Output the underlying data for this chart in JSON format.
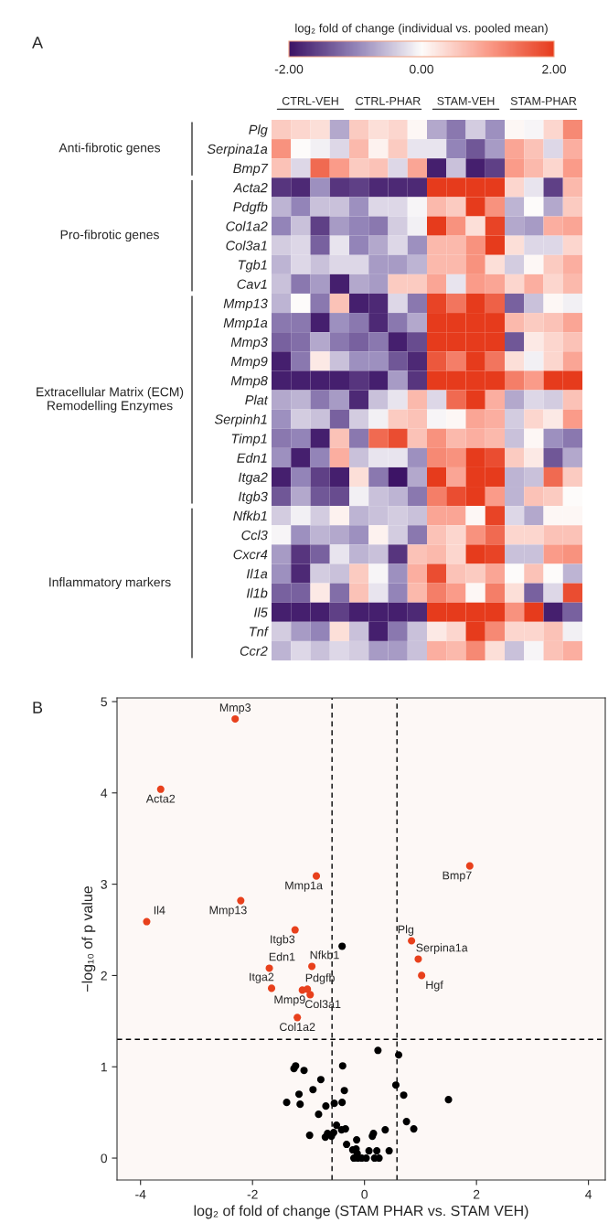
{
  "chart_data": [
    {
      "type": "heatmap",
      "clabel": "log₂ fold of change (individual vs. pooled mean)",
      "clim": [
        -2,
        2
      ],
      "cticks": [
        {
          "value": -2,
          "label": "-2.00"
        },
        {
          "value": 0,
          "label": "0.00"
        },
        {
          "value": 2,
          "label": "2.00"
        }
      ],
      "annotations": [
        "A",
        "CTRL-VEH",
        "CTRL-PHAR",
        "STAM-VEH",
        "STAM-PHAR",
        "Anti-fibrotic genes",
        "Pro-fibrotic genes",
        "Extracellular Matrix (ECM)\nRemodelling Enzymes",
        "Inflammatory markers"
      ],
      "categories": [
        null,
        null,
        null,
        null,
        null,
        null,
        null,
        null,
        null,
        null,
        null,
        null,
        null,
        null,
        null,
        null
      ],
      "y_categories": [
        "Plg",
        "Serpina1a",
        "Bmp7",
        "Acta2",
        "Pdgfb",
        "Col1a2",
        "Col3a1",
        "Tgb1",
        "Cav1",
        "Mmp13",
        "Mmp1a",
        "Mmp3",
        "Mmp9",
        "Mmp8",
        "Plat",
        "Serpinh1",
        "Timp1",
        "Edn1",
        "Itga2",
        "Itgb3",
        "Nfkb1",
        "Ccl3",
        "Cxcr4",
        "Il1a",
        "Il1b",
        "Il5",
        "Tnf",
        "Ccr2"
      ],
      "cells": [
        [
          0.5,
          0.4,
          0.3,
          -0.7,
          0.5,
          0.3,
          0.4,
          0.05,
          -0.7,
          -1.1,
          -0.4,
          -0.9,
          0.05,
          -0.05,
          0.4,
          1.2
        ],
        [
          1.1,
          0,
          -0.1,
          -0.3,
          0.7,
          0.1,
          0.5,
          -0.2,
          -0.2,
          -1.0,
          -1.4,
          -0.8,
          0.9,
          0.6,
          -0.3,
          0.8
        ],
        [
          0.6,
          -0.3,
          1.5,
          1.0,
          0.5,
          0.6,
          -0.3,
          0.9,
          -1.9,
          -0.5,
          -1.9,
          -1.6,
          1.0,
          0.7,
          0.4,
          1.0
        ],
        [
          -1.7,
          -1.8,
          -0.9,
          -1.7,
          -1.6,
          -1.8,
          -1.8,
          -1.8,
          2,
          2,
          2,
          2,
          0.4,
          -0.2,
          -1.6,
          0.7
        ],
        [
          -0.6,
          -1.0,
          -0.5,
          -0.5,
          -0.9,
          -0.3,
          -0.3,
          -0.05,
          0.7,
          0.5,
          2,
          1.1,
          -0.6,
          0,
          -0.7,
          0.5
        ],
        [
          -1.0,
          -0.5,
          -1.6,
          -0.8,
          -1.0,
          -1.1,
          -0.4,
          -0.1,
          2,
          1.1,
          0.3,
          1.9,
          -0.7,
          -0.8,
          0.8,
          0.9
        ],
        [
          -0.4,
          -0.3,
          -1.3,
          -0.2,
          -1.0,
          -0.7,
          -0.3,
          -0.9,
          0.7,
          0.7,
          1.1,
          2,
          0.3,
          -0.3,
          -0.3,
          0.4
        ],
        [
          -0.6,
          -0.3,
          -0.5,
          -0.3,
          -0.3,
          -0.8,
          -0.8,
          -0.6,
          0.7,
          0.7,
          1.1,
          0.3,
          -0.4,
          0.05,
          0.5,
          0.8
        ],
        [
          -0.5,
          -1.1,
          -0.8,
          -1.9,
          -0.7,
          -0.8,
          0.5,
          0.5,
          0.9,
          -0.2,
          1.0,
          0.9,
          0.4,
          0.8,
          0.4,
          0.7
        ],
        [
          -0.6,
          0,
          -1.1,
          0.6,
          -1.9,
          -1.8,
          -0.3,
          -1.1,
          1.9,
          1.4,
          2,
          1.6,
          -1.3,
          -0.5,
          0.05,
          -0.1
        ],
        [
          -1.1,
          -1.1,
          -1.9,
          -0.9,
          -1.1,
          -1.8,
          -1.1,
          -0.7,
          2,
          2,
          2,
          2,
          0.7,
          0.5,
          0.6,
          0.9
        ],
        [
          -1.3,
          -1.2,
          -0.7,
          -1.1,
          -1.3,
          -1.1,
          -1.9,
          -1.5,
          2,
          2,
          2,
          2,
          -1.4,
          0.2,
          0.4,
          0.6
        ],
        [
          -1.9,
          -1.1,
          0.2,
          -0.5,
          -0.9,
          -0.9,
          -1.4,
          -1.8,
          1.7,
          1.3,
          2,
          1.4,
          0.3,
          -0.1,
          0.4,
          0.9
        ],
        [
          -1.9,
          -1.9,
          -1.9,
          -1.9,
          -1.7,
          -1.9,
          -0.8,
          -1.7,
          2,
          2,
          2,
          2,
          1.3,
          1.0,
          2,
          2
        ],
        [
          -0.7,
          -0.6,
          -1.1,
          -0.8,
          -1.8,
          -0.5,
          -0.2,
          0.7,
          -0.3,
          1.5,
          2,
          0.8,
          -0.7,
          -0.3,
          -0.4,
          0.6
        ],
        [
          -0.9,
          -0.4,
          -0.5,
          -1.3,
          -0.4,
          -0.1,
          0.5,
          0.6,
          -0.05,
          0.05,
          0.9,
          0.8,
          -0.4,
          0.4,
          0.2,
          1.0
        ],
        [
          -1.1,
          -1.0,
          -1.9,
          0.6,
          -1.1,
          1.5,
          1.8,
          0.6,
          1.1,
          0.7,
          0.8,
          0.7,
          -0.5,
          0.05,
          -0.9,
          -1.1
        ],
        [
          -0.9,
          -1.9,
          -1.0,
          0.8,
          -0.5,
          -0.2,
          -0.2,
          -0.9,
          1.2,
          1.1,
          2,
          1.8,
          0.5,
          0.2,
          -1.4,
          -0.7
        ],
        [
          -1.9,
          -1.0,
          -1.6,
          -1.9,
          0.3,
          -1.1,
          -2,
          -0.7,
          2,
          0.9,
          2,
          2,
          -0.6,
          -0.5,
          1.5,
          0.5
        ],
        [
          -1.4,
          -0.7,
          -1.4,
          -1.5,
          -0.1,
          -0.5,
          -0.6,
          -1.1,
          1.3,
          1.8,
          2,
          1.0,
          -0.6,
          0.6,
          0.5,
          0
        ],
        [
          -0.4,
          -0.1,
          -0.4,
          0.1,
          -0.6,
          -0.5,
          -0.4,
          -0.5,
          0.9,
          0.9,
          0.05,
          1.9,
          -0.3,
          -0.7,
          0.05,
          0.05
        ],
        [
          -0.05,
          -0.9,
          -0.6,
          -0.7,
          -0.9,
          0.1,
          -0.4,
          -1.1,
          0.6,
          0.4,
          1.1,
          1.5,
          0.4,
          0.4,
          0.6,
          0.6
        ],
        [
          -0.8,
          -1.7,
          -1.3,
          -0.2,
          -0.6,
          -0.5,
          -1.7,
          0.6,
          0.7,
          0.4,
          2,
          1.9,
          -0.5,
          -0.5,
          1.0,
          1.1
        ],
        [
          -0.9,
          -1.8,
          -0.4,
          -0.5,
          0.5,
          -0.05,
          -0.9,
          0.8,
          1.8,
          0.6,
          0.5,
          0.9,
          0,
          0.6,
          0,
          -0.6
        ],
        [
          -1.3,
          -1.3,
          0.2,
          -1.2,
          0.6,
          -0.2,
          -1.0,
          0.7,
          1.3,
          1.0,
          0.05,
          1.3,
          0.3,
          -1.3,
          -0.3,
          1.8
        ],
        [
          -1.9,
          -1.9,
          -1.9,
          -1.6,
          -1.9,
          -1.9,
          -1.9,
          -1.8,
          2,
          2,
          2,
          2,
          1.1,
          2,
          -1.9,
          -1.3
        ],
        [
          -0.4,
          -0.8,
          -1.0,
          0.3,
          -0.5,
          -1.9,
          -1.1,
          -0.5,
          0.2,
          0.4,
          2,
          1.2,
          0.4,
          0.4,
          0.6,
          -0.1
        ],
        [
          -0.6,
          -0.3,
          -0.5,
          -0.3,
          -0.4,
          -0.8,
          -0.8,
          -0.5,
          0.8,
          0.7,
          1.2,
          0.3,
          -0.5,
          -0.05,
          0.6,
          0.8
        ]
      ]
    },
    {
      "type": "scatter",
      "xlabel": "log₂ of fold of change (STAM PHAR vs. STAM VEH)",
      "ylabel": "−log₁₀ of p value",
      "annotations": [
        "B"
      ],
      "marker": "circle",
      "xlim": [
        -4.42,
        4.3
      ],
      "xticks": [
        -4,
        -2,
        0,
        2,
        4
      ],
      "ylim": [
        -0.24,
        5.04
      ],
      "yticks": [
        0,
        1,
        2,
        3,
        4,
        5
      ],
      "ref_lines": [
        {
          "axis": "x",
          "value": -0.58,
          "color": "#000000",
          "line_style": "dashed"
        },
        {
          "axis": "x",
          "value": 0.58,
          "color": "#000000",
          "line_style": "dashed"
        },
        {
          "axis": "y",
          "value": 1.3,
          "color": "#000000",
          "line_style": "dashed"
        }
      ],
      "series": [
        {
          "color": "#e8401c",
          "x": [
            -2.31,
            -3.64,
            1.88,
            -0.86,
            -2.21,
            -3.89,
            -1.24,
            0.84,
            0.96,
            -1.7,
            -0.94,
            1.02,
            -1.66,
            -1.11,
            -1.02,
            -0.97,
            -1.2
          ],
          "values": [
            4.81,
            4.04,
            3.2,
            3.09,
            2.82,
            2.59,
            2.5,
            2.38,
            2.18,
            2.08,
            2.1,
            2.0,
            1.86,
            1.84,
            1.85,
            1.79,
            1.54
          ],
          "value_labels": [
            "Mmp3",
            "Acta2",
            "Bmp7",
            "Mmp1a",
            "Mmp13",
            "Il4",
            "Itgb3",
            "Plg",
            "Serpina1a",
            "Edn1",
            "Nfkb1",
            "Hgf",
            "Itga2",
            "Mmp9",
            "Pdgfb",
            "Col3a1",
            "Col1a2"
          ]
        },
        {
          "color": "#000000",
          "x": [
            -0.4,
            0.24,
            0.61,
            -0.39,
            -1.23,
            -1.26,
            -1.08,
            -0.78,
            0.56,
            -0.92,
            -0.36,
            -1.17,
            0.7,
            1.5,
            -1.39,
            -1.15,
            -0.54,
            -0.4,
            -0.69,
            -0.82,
            0.75,
            -0.5,
            0.88,
            0.37,
            -0.34,
            -0.41,
            -0.66,
            -0.55,
            -0.59,
            -0.7,
            -0.98,
            0.16,
            0.14,
            -0.14,
            -0.32,
            -0.21,
            -0.15,
            0.08,
            0.22,
            0.44,
            -0.13,
            -0.19,
            -0.12,
            -0.05,
            0.03,
            0.18,
            0.26
          ],
          "values": [
            2.32,
            1.18,
            1.13,
            1.01,
            1.01,
            0.98,
            0.96,
            0.86,
            0.8,
            0.75,
            0.74,
            0.7,
            0.69,
            0.64,
            0.61,
            0.59,
            0.6,
            0.61,
            0.57,
            0.48,
            0.4,
            0.36,
            0.32,
            0.31,
            0.32,
            0.31,
            0.27,
            0.28,
            0.24,
            0.23,
            0.25,
            0.27,
            0.24,
            0.2,
            0.15,
            0.09,
            0.1,
            0.08,
            0.08,
            0.08,
            0.05,
            0,
            0,
            0,
            0,
            0,
            0
          ]
        }
      ]
    }
  ]
}
